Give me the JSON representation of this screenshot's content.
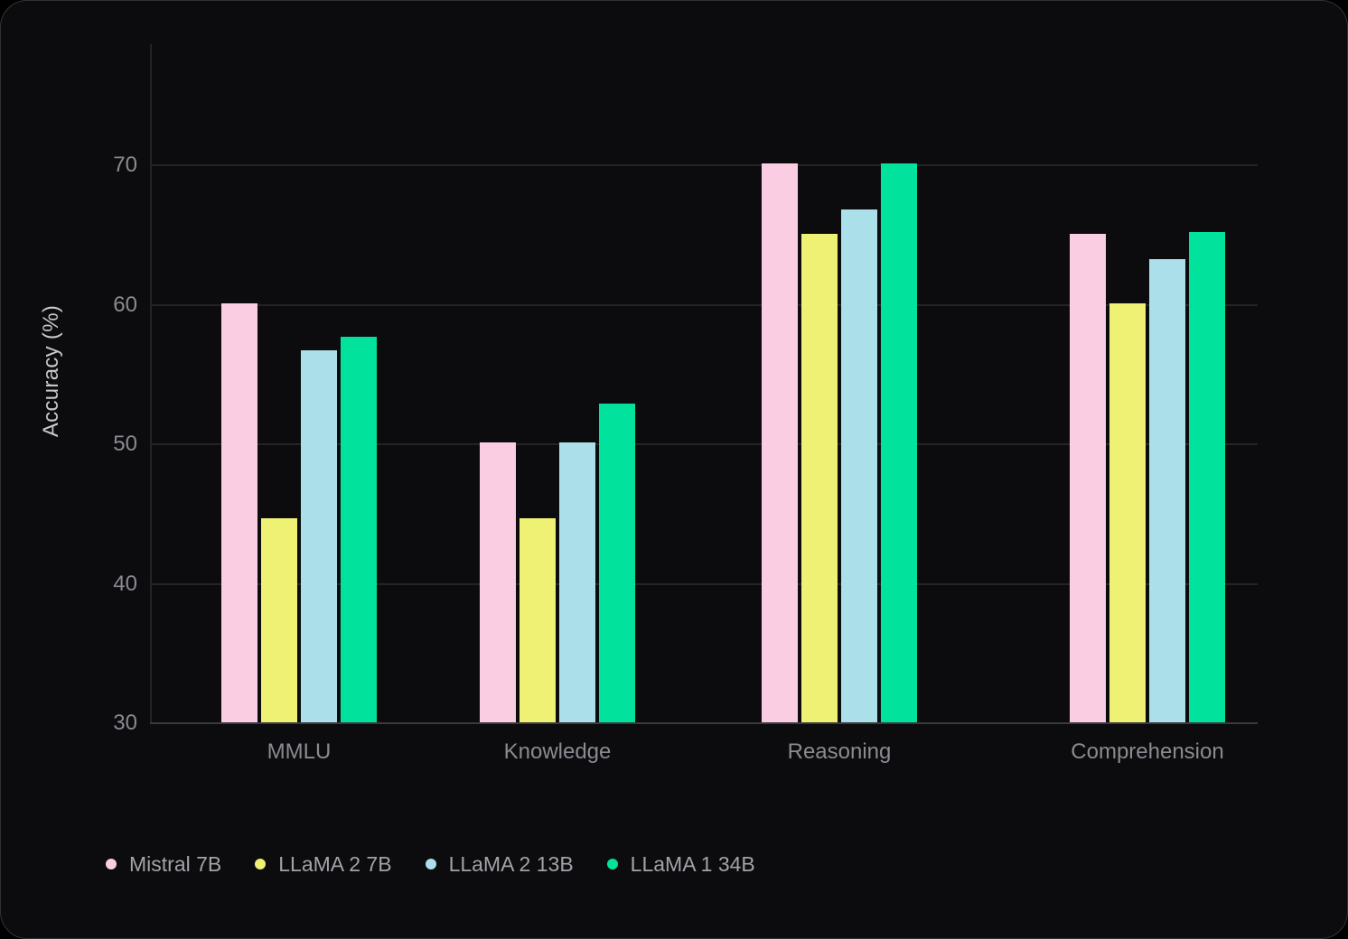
{
  "chart_data": {
    "type": "bar",
    "title": "",
    "xlabel": "",
    "ylabel": "Accuracy (%)",
    "categories": [
      "MMLU",
      "Knowledge",
      "Reasoning",
      "Comprehension"
    ],
    "series": [
      {
        "name": "Mistral 7B",
        "color": "#fbcde2",
        "values": [
          60.1,
          50.1,
          70.1,
          65.1
        ]
      },
      {
        "name": "LLaMA 2 7B",
        "color": "#eef173",
        "values": [
          44.7,
          44.7,
          65.1,
          60.1
        ]
      },
      {
        "name": "LLaMA 2 13B",
        "color": "#abdfe9",
        "values": [
          56.7,
          50.1,
          66.8,
          63.3
        ]
      },
      {
        "name": "LLaMA 1 34B",
        "color": "#01e29c",
        "values": [
          57.7,
          52.9,
          70.1,
          65.2
        ]
      }
    ],
    "yticks": [
      30,
      40,
      50,
      60,
      70
    ],
    "ylim": [
      30,
      78.7
    ],
    "grid": true,
    "legend_position": "bottom-left",
    "theme": {
      "background": "#0c0c0e",
      "gridline_color": "#242428",
      "axis_line_color": "#3a3a3f",
      "tick_text_color": "#8a8a92",
      "axis_title_color": "#c7c7cc",
      "legend_text_color": "#a2a2aa"
    }
  }
}
